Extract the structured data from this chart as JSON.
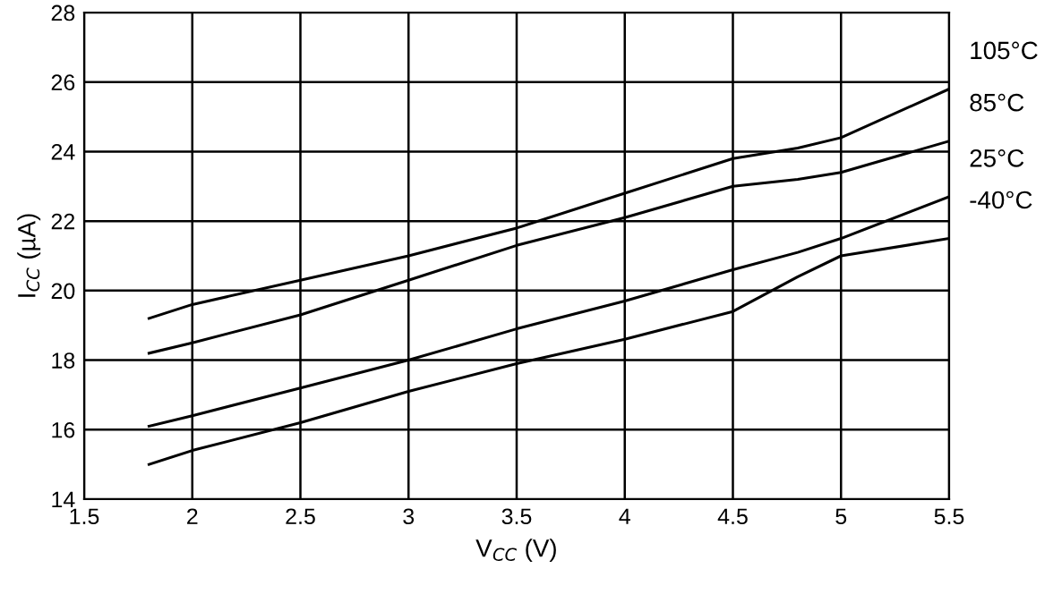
{
  "chart_data": {
    "type": "line",
    "xlabel": "V$_{CC}$ (V)",
    "ylabel": "I$_{CC}$ (µA)",
    "x": [
      1.8,
      2,
      2.5,
      3,
      3.5,
      4,
      4.5,
      4.8,
      5,
      5.5
    ],
    "series": [
      {
        "name": "105°C",
        "color": "#000000",
        "values": [
          19.2,
          19.6,
          20.3,
          21.0,
          21.8,
          22.8,
          23.8,
          24.1,
          24.4,
          25.8
        ]
      },
      {
        "name": "85°C",
        "color": "#000000",
        "values": [
          18.2,
          18.5,
          19.3,
          20.3,
          21.3,
          22.1,
          23.0,
          23.2,
          23.4,
          24.3
        ]
      },
      {
        "name": "25°C",
        "color": "#000000",
        "values": [
          16.1,
          16.4,
          17.2,
          18.0,
          18.9,
          19.7,
          20.6,
          21.1,
          21.5,
          22.7
        ]
      },
      {
        "name": "-40°C",
        "color": "#000000",
        "values": [
          15.0,
          15.4,
          16.2,
          17.1,
          17.9,
          18.6,
          19.4,
          20.4,
          21.0,
          21.5
        ]
      }
    ],
    "xlim": [
      1.5,
      5.5
    ],
    "xticks": [
      1.5,
      2,
      2.5,
      3,
      3.5,
      4,
      4.5,
      5,
      5.5
    ],
    "ylim": [
      14,
      28
    ],
    "yticks": [
      14,
      16,
      18,
      20,
      22,
      24,
      26,
      28
    ],
    "grid": true,
    "legend": false,
    "marker": "none",
    "line_style": "solid"
  }
}
